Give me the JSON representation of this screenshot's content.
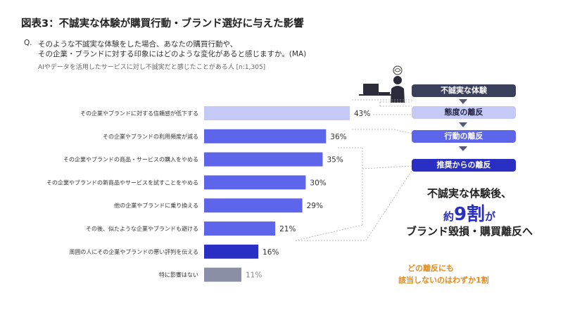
{
  "title": "図表3：不誠実な体験が購買行動・ブランド選好に与えた影響",
  "question": {
    "prefix": "Q.",
    "line1": "そのような不誠実な体験をした場合、あなたの購買行動や、",
    "line2": "その企業・ブランドに対する印象にはどのような変化があると感じますか。(MA)",
    "sample": "AIやデータを活用したサービスに対し不誠実だと感じたことがある人 [n:1,305]"
  },
  "chart_data": {
    "type": "bar",
    "orientation": "horizontal",
    "categories": [
      "その企業やブランドに対する信頼感が低下する",
      "その企業やブランドの利用頻度が減る",
      "その企業やブランドの商品・サービスの購入をやめる",
      "その企業やブランドの新商品やサービスを試すことをやめる",
      "他の企業やブランドに乗り換える",
      "その後、似たような企業やブランドも避ける",
      "周囲の人にその企業やブランドの悪い評判を伝える",
      "特に影響はない"
    ],
    "values": [
      43,
      36,
      35,
      30,
      29,
      21,
      16,
      11
    ],
    "value_labels": [
      "43%",
      "36%",
      "35%",
      "30%",
      "29%",
      "21%",
      "16%",
      "11%"
    ],
    "bar_colors": [
      "#c4c9f6",
      "#5d66ea",
      "#5d66ea",
      "#5d66ea",
      "#5d66ea",
      "#5d66ea",
      "#2a2fc4",
      "#8a8fa6"
    ],
    "xlim": [
      0,
      43
    ]
  },
  "stages": [
    {
      "label": "不誠実な体験",
      "color": "#3a3f5c"
    },
    {
      "label": "態度の離反",
      "color": "#c4c9f6",
      "text_color": "#222244"
    },
    {
      "label": "行動の離反",
      "color": "#5d66ea"
    },
    {
      "label": "推奨からの離反",
      "color": "#2a2fc4"
    }
  ],
  "message": {
    "line1": "不誠実な体験後、",
    "prefix": "約",
    "highlight": "9割",
    "suffix": "が",
    "line3": "ブランド毀損・購買離反へ"
  },
  "note": {
    "line1": "どの離反にも",
    "line2": "該当しないのはわずか1割"
  }
}
